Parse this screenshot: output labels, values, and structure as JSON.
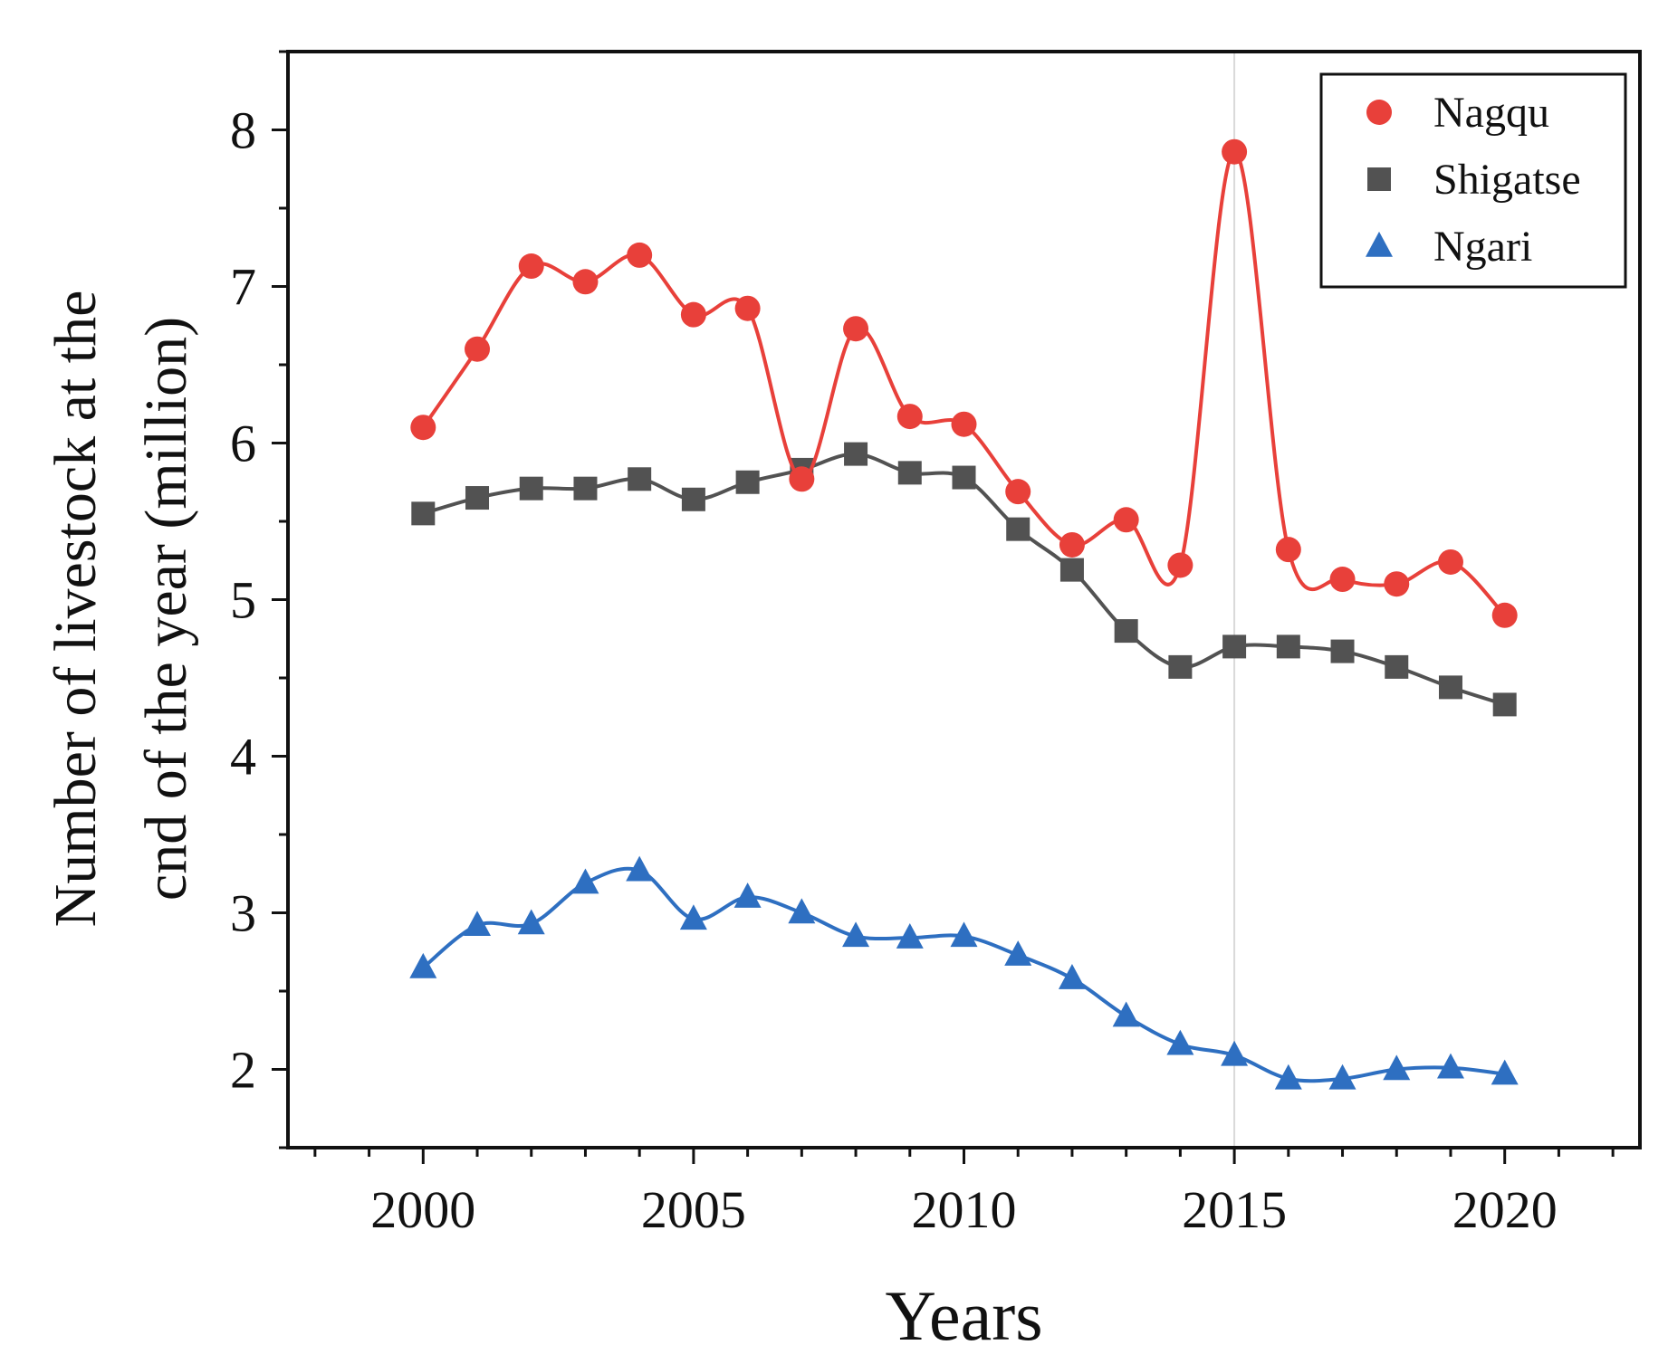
{
  "chart_data": {
    "type": "line",
    "title": "",
    "xlabel": "Years",
    "ylabel_lines": [
      "Number of livestock at the",
      "cnd of  the year (million)"
    ],
    "xlim": [
      1997.5,
      2022.5
    ],
    "ylim": [
      1.5,
      8.5
    ],
    "x_ticks": [
      2000,
      2005,
      2010,
      2015,
      2020
    ],
    "x_tick_labels": [
      "2000",
      "2005",
      "2010",
      "2015",
      "2020"
    ],
    "y_ticks": [
      2,
      3,
      4,
      5,
      6,
      7,
      8
    ],
    "y_tick_labels": [
      "2",
      "3",
      "4",
      "5",
      "6",
      "7",
      "8"
    ],
    "reference_line_x": 2015,
    "legend_position": "top-right",
    "x": [
      2000,
      2001,
      2002,
      2003,
      2004,
      2005,
      2006,
      2007,
      2008,
      2009,
      2010,
      2011,
      2012,
      2013,
      2014,
      2015,
      2016,
      2017,
      2018,
      2019,
      2020
    ],
    "series": [
      {
        "name": "Nagqu",
        "color": "#e8403a",
        "marker": "circle",
        "values": [
          6.1,
          6.6,
          7.13,
          7.03,
          7.2,
          6.82,
          6.86,
          5.77,
          6.73,
          6.17,
          6.12,
          5.69,
          5.35,
          5.51,
          5.22,
          7.86,
          5.32,
          5.13,
          5.1,
          5.24,
          4.9
        ]
      },
      {
        "name": "Shigatse",
        "color": "#525252",
        "marker": "square",
        "values": [
          5.55,
          5.65,
          5.71,
          5.71,
          5.77,
          5.64,
          5.75,
          5.83,
          5.93,
          5.81,
          5.78,
          5.45,
          5.19,
          4.8,
          4.57,
          4.7,
          4.7,
          4.67,
          4.57,
          4.44,
          4.33
        ]
      },
      {
        "name": "Ngari",
        "color": "#2e6fc1",
        "marker": "triangle",
        "values": [
          2.65,
          2.92,
          2.93,
          3.19,
          3.27,
          2.96,
          3.1,
          3.0,
          2.85,
          2.84,
          2.85,
          2.73,
          2.58,
          2.34,
          2.16,
          2.09,
          1.94,
          1.94,
          2.0,
          2.01,
          1.97
        ]
      }
    ]
  }
}
